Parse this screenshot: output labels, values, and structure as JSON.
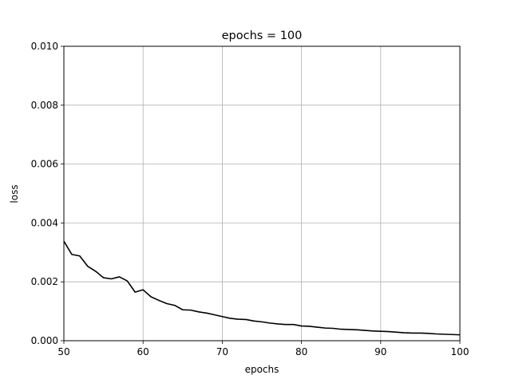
{
  "chart_data": {
    "type": "line",
    "title": "epochs = 100",
    "xlabel": "epochs",
    "ylabel": "loss",
    "xlim": [
      50,
      100
    ],
    "ylim": [
      0,
      0.01
    ],
    "grid": true,
    "xticks": [
      50,
      60,
      70,
      80,
      90,
      100
    ],
    "xtick_labels": [
      "50",
      "60",
      "70",
      "80",
      "90",
      "100"
    ],
    "yticks": [
      0,
      0.002,
      0.004,
      0.006,
      0.008,
      0.01
    ],
    "ytick_labels": [
      "0.000",
      "0.002",
      "0.004",
      "0.006",
      "0.008",
      "0.010"
    ],
    "line_color": "#000000",
    "grid_color": "#b0b0b0",
    "series": [
      {
        "x": [
          50,
          51,
          52,
          53,
          54,
          55,
          56,
          57,
          58,
          59,
          60,
          61,
          62,
          63,
          64,
          65,
          66,
          67,
          68,
          69,
          70,
          71,
          72,
          73,
          74,
          75,
          76,
          77,
          78,
          79,
          80,
          81,
          82,
          83,
          84,
          85,
          86,
          87,
          88,
          89,
          90,
          91,
          92,
          93,
          94,
          95,
          96,
          97,
          98,
          99,
          100
        ],
        "values": [
          0.00338,
          0.00293,
          0.00288,
          0.00253,
          0.00236,
          0.00214,
          0.0021,
          0.00217,
          0.00203,
          0.00165,
          0.00173,
          0.00149,
          0.00137,
          0.00126,
          0.0012,
          0.00105,
          0.00104,
          0.00098,
          0.00094,
          0.00088,
          0.00082,
          0.00076,
          0.00073,
          0.00072,
          0.00067,
          0.00064,
          0.0006,
          0.00057,
          0.00055,
          0.00055,
          0.0005,
          0.00049,
          0.00046,
          0.00043,
          0.00042,
          0.00039,
          0.00038,
          0.00037,
          0.00035,
          0.00033,
          0.00032,
          0.00031,
          0.00029,
          0.00027,
          0.00026,
          0.00026,
          0.00025,
          0.00023,
          0.00022,
          0.00021,
          0.0002
        ]
      }
    ]
  }
}
